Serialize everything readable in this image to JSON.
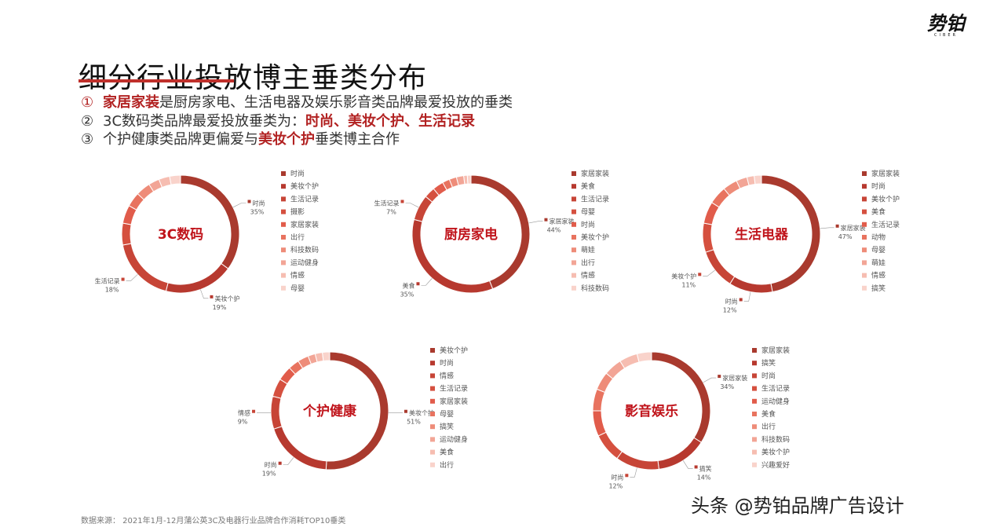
{
  "title": "细分行业投放博主垂类分布",
  "logo": {
    "text": "势铂",
    "sub": "CIBER"
  },
  "bullets": [
    {
      "num": "①",
      "parts": [
        {
          "t": "家居家装",
          "h": true
        },
        {
          "t": "是厨房家电、生活电器及娱乐影音类品牌最爱投放的垂类",
          "h": false
        }
      ]
    },
    {
      "num": "②",
      "parts": [
        {
          "t": "3C数码类品牌最爱投放垂类为：",
          "h": false
        },
        {
          "t": "时尚、美妆个护、生活记录",
          "h": true
        }
      ]
    },
    {
      "num": "③",
      "parts": [
        {
          "t": "个护健康类品牌更偏爱与",
          "h": false
        },
        {
          "t": "美妆个护",
          "h": true
        },
        {
          "t": "垂类博主合作",
          "h": false
        }
      ]
    }
  ],
  "palette": [
    "#a93a2e",
    "#b7392f",
    "#c74537",
    "#d5503f",
    "#e15c4b",
    "#e8735f",
    "#ee8c79",
    "#f2a596",
    "#f6bdb1",
    "#f9d3cb"
  ],
  "chart_data": [
    {
      "type": "pie",
      "donut": true,
      "title": "3C数码",
      "categories": [
        "时尚",
        "美妆个护",
        "生活记录",
        "摄影",
        "家居家装",
        "出行",
        "科技数码",
        "运动健身",
        "情感",
        "母婴"
      ],
      "values": [
        35,
        19,
        18,
        6,
        5,
        4,
        4,
        3,
        3,
        3
      ],
      "callouts": [
        {
          "index": 0,
          "name": "时尚",
          "pct": "35%"
        },
        {
          "index": 1,
          "name": "美妆个护",
          "pct": "19%"
        },
        {
          "index": 2,
          "name": "生活记录",
          "pct": "18%"
        }
      ]
    },
    {
      "type": "pie",
      "donut": true,
      "title": "厨房家电",
      "categories": [
        "家居家装",
        "美食",
        "生活记录",
        "母婴",
        "时尚",
        "美妆个护",
        "萌娃",
        "出行",
        "情感",
        "科技数码"
      ],
      "values": [
        44,
        35,
        7,
        3,
        3,
        2,
        2,
        2,
        1,
        1
      ],
      "callouts": [
        {
          "index": 0,
          "name": "家居家装",
          "pct": "44%"
        },
        {
          "index": 1,
          "name": "美食",
          "pct": "35%"
        },
        {
          "index": 2,
          "name": "生活记录",
          "pct": "7%"
        }
      ]
    },
    {
      "type": "pie",
      "donut": true,
      "title": "生活电器",
      "categories": [
        "家居家装",
        "时尚",
        "美妆个护",
        "美食",
        "生活记录",
        "动物",
        "母婴",
        "萌娃",
        "情感",
        "搞笑"
      ],
      "values": [
        47,
        12,
        11,
        8,
        6,
        5,
        4,
        3,
        2,
        2
      ],
      "callouts": [
        {
          "index": 0,
          "name": "家居家装",
          "pct": "47%"
        },
        {
          "index": 1,
          "name": "时尚",
          "pct": "12%"
        },
        {
          "index": 2,
          "name": "美妆个护",
          "pct": "11%"
        }
      ]
    },
    {
      "type": "pie",
      "donut": true,
      "title": "个护健康",
      "categories": [
        "美妆个护",
        "时尚",
        "情感",
        "生活记录",
        "家居家装",
        "母婴",
        "搞笑",
        "运动健身",
        "美食",
        "出行"
      ],
      "values": [
        51,
        19,
        9,
        5,
        4,
        3,
        3,
        2,
        2,
        2
      ],
      "callouts": [
        {
          "index": 0,
          "name": "美妆个护",
          "pct": "51%"
        },
        {
          "index": 1,
          "name": "时尚",
          "pct": "19%"
        },
        {
          "index": 2,
          "name": "情感",
          "pct": "9%"
        }
      ]
    },
    {
      "type": "pie",
      "donut": true,
      "title": "影音娱乐",
      "categories": [
        "家居家装",
        "搞笑",
        "时尚",
        "生活记录",
        "运动健身",
        "美食",
        "出行",
        "科技数码",
        "美妆个护",
        "兴趣爱好"
      ],
      "values": [
        34,
        14,
        12,
        8,
        7,
        6,
        5,
        5,
        5,
        4
      ],
      "callouts": [
        {
          "index": 0,
          "name": "家居家装",
          "pct": "34%"
        },
        {
          "index": 1,
          "name": "搞笑",
          "pct": "14%"
        },
        {
          "index": 2,
          "name": "时尚",
          "pct": "12%"
        }
      ]
    }
  ],
  "source": "数据来源：   2021年1月-12月蒲公英3C及电器行业品牌合作消耗TOP10垂类",
  "watermark": "头条 @势铂品牌广告设计"
}
